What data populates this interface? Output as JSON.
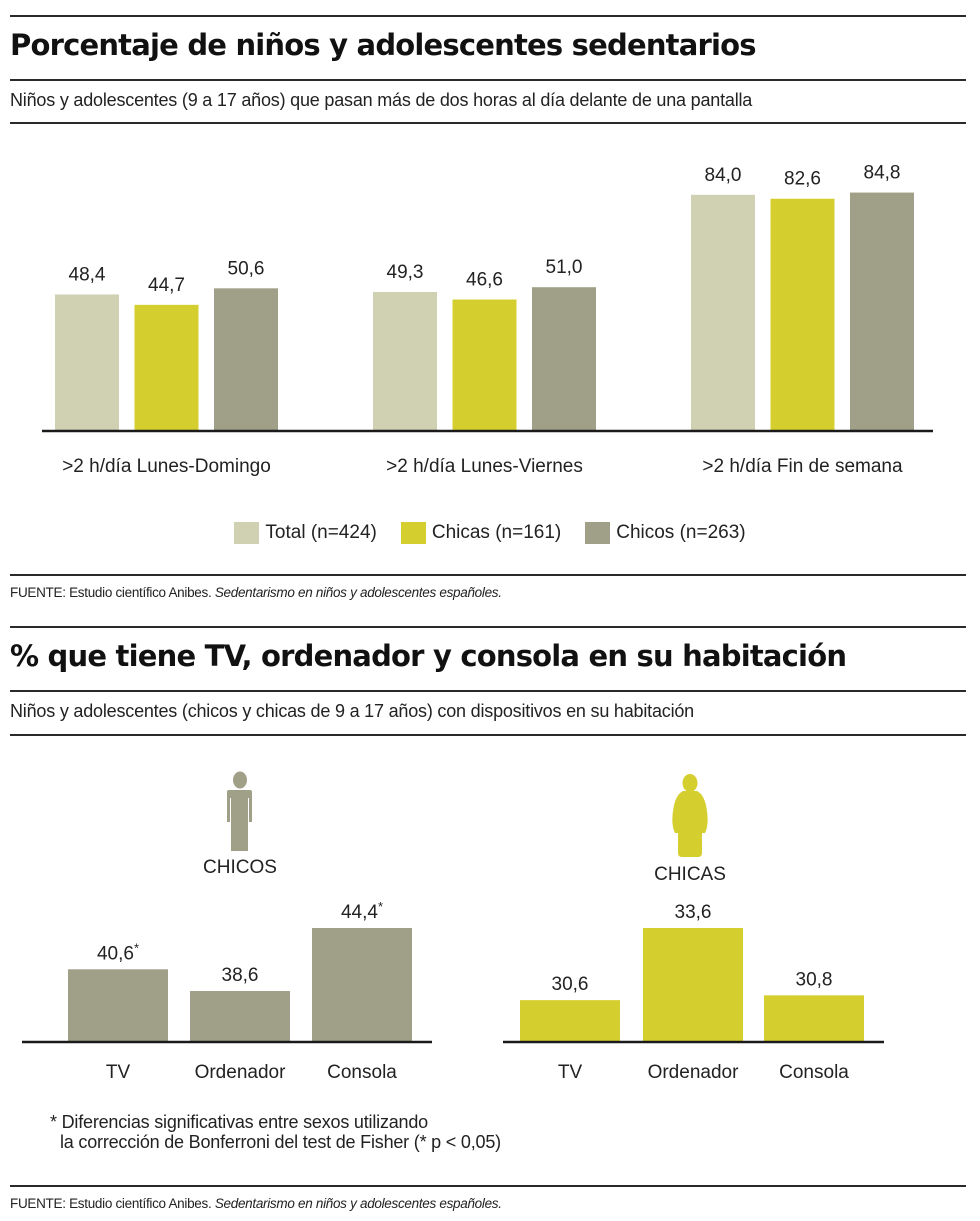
{
  "section1": {
    "title": "Porcentaje de niños y adolescentes sedentarios",
    "subtitle": "Niños y adolescentes (9 a 17 años) que pasan más de dos horas al día delante de una pantalla",
    "source_prefix": "FUENTE: Estudio científico Anibes. ",
    "source_italic": "Sedentarismo en niños y adolescentes españoles."
  },
  "section2": {
    "title": "% que tiene TV, ordenador y consola en su habitación",
    "subtitle": "Niños y adolescentes (chicos y chicas de 9 a 17 años) con dispositivos en su habitación",
    "footnote_line1": "* Diferencias significativas entre sexos utilizando",
    "footnote_line2": "la corrección de Bonferroni del test de Fisher (* p < 0,05)",
    "source_prefix": "FUENTE: Estudio científico Anibes. ",
    "source_italic": "Sedentarismo en niños y adolescentes españoles."
  },
  "colors": {
    "total": "#d0d0b3",
    "chicas": "#d4cf2f",
    "chicos": "#a09f88",
    "axis": "#1a1a1a"
  },
  "chart_data": [
    {
      "type": "bar",
      "title": "Porcentaje de niños y adolescentes sedentarios",
      "xlabel": "",
      "ylabel": "",
      "ylim": [
        0,
        100
      ],
      "grid": false,
      "legend_position": "bottom-center",
      "categories": [
        ">2 h/día Lunes-Domingo",
        ">2 h/día Lunes-Viernes",
        ">2 h/día Fin de semana"
      ],
      "series": [
        {
          "name": "Total (n=424)",
          "key": "total",
          "values": [
            48.4,
            49.3,
            84.0
          ],
          "labels": [
            "48,4",
            "49,3",
            "84,0"
          ]
        },
        {
          "name": "Chicas (n=161)",
          "key": "chicas",
          "values": [
            44.7,
            46.6,
            82.6
          ],
          "labels": [
            "44,7",
            "46,6",
            "82,6"
          ]
        },
        {
          "name": "Chicos (n=263)",
          "key": "chicos",
          "values": [
            50.6,
            51.0,
            84.8
          ],
          "labels": [
            "50,6",
            "51,0",
            "84,8"
          ]
        }
      ]
    },
    {
      "type": "bar",
      "title": "CHICOS",
      "icon": "boy-figure-icon",
      "color_key": "chicos",
      "categories": [
        "TV",
        "Ordenador",
        "Consola"
      ],
      "values": [
        40.6,
        38.6,
        44.4
      ],
      "labels": [
        "40,6",
        "38,6",
        "44,4"
      ],
      "significant": [
        true,
        false,
        true
      ],
      "ylim": [
        34,
        45
      ]
    },
    {
      "type": "bar",
      "title": "CHICAS",
      "icon": "girl-figure-icon",
      "color_key": "chicas",
      "categories": [
        "TV",
        "Ordenador",
        "Consola"
      ],
      "values": [
        30.6,
        33.6,
        30.8
      ],
      "labels": [
        "30,6",
        "33,6",
        "30,8"
      ],
      "significant": [
        false,
        false,
        false
      ],
      "ylim": [
        28.9,
        34
      ]
    }
  ]
}
